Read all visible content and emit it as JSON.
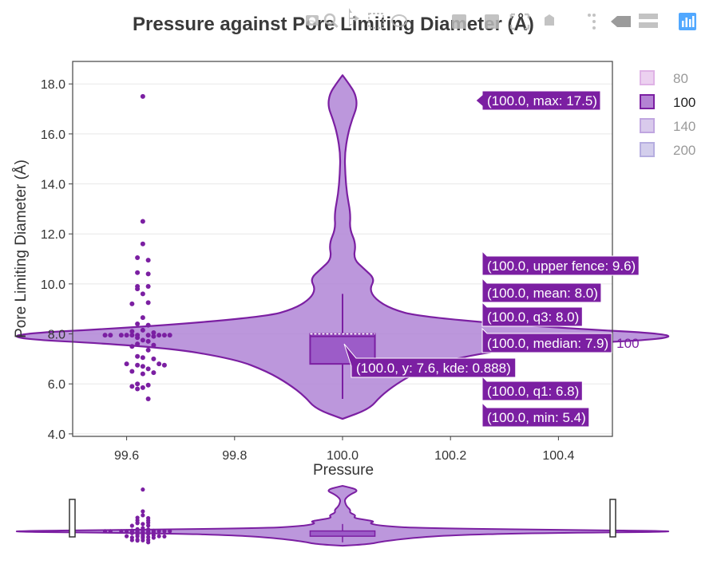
{
  "chart_data": {
    "type": "violin",
    "title": "Pressure against Pore Limiting Diameter (Å)",
    "xlabel": "Pressure",
    "ylabel": "Pore Limiting Diameter (Å)",
    "xlim": [
      99.5,
      100.5
    ],
    "ylim": [
      3.9,
      18.9
    ],
    "x_ticks": [
      "99.6",
      "99.8",
      "100.0",
      "100.2",
      "100.4"
    ],
    "y_ticks": [
      "4.0",
      "6.0",
      "8.0",
      "10.0",
      "12.0",
      "14.0",
      "16.0",
      "18.0"
    ],
    "grid": true,
    "legend": {
      "placement": "top-right",
      "items": [
        {
          "name": "80",
          "color": "#dfb3e6",
          "active": false
        },
        {
          "name": "100",
          "color": "#9b59c6",
          "active": true
        },
        {
          "name": "140",
          "color": "#c0a6e0",
          "active": false
        },
        {
          "name": "200",
          "color": "#b6aee0",
          "active": false
        }
      ]
    },
    "series": [
      {
        "name": "100",
        "x": 100.0,
        "color": "#7b1fa2",
        "fill": "#b085d6",
        "box": {
          "min": 5.4,
          "q1": 6.8,
          "median": 7.9,
          "mean": 8.0,
          "q3": 8.0,
          "upper_fence": 9.6,
          "max": 17.5
        },
        "violin_profile": [
          [
            4.6,
            0.0
          ],
          [
            5.0,
            0.05
          ],
          [
            5.5,
            0.07
          ],
          [
            6.0,
            0.1
          ],
          [
            6.5,
            0.14
          ],
          [
            7.0,
            0.2
          ],
          [
            7.5,
            0.34
          ],
          [
            7.9,
            0.69
          ],
          [
            8.3,
            0.35
          ],
          [
            8.7,
            0.14
          ],
          [
            9.0,
            0.09
          ],
          [
            9.4,
            0.06
          ],
          [
            9.8,
            0.05
          ],
          [
            10.2,
            0.06
          ],
          [
            10.6,
            0.04
          ],
          [
            11.0,
            0.02
          ],
          [
            11.6,
            0.025
          ],
          [
            12.2,
            0.013
          ],
          [
            12.8,
            0.015
          ],
          [
            13.6,
            0.008
          ],
          [
            14.4,
            0.005
          ],
          [
            15.2,
            0.004
          ],
          [
            16.0,
            0.01
          ],
          [
            16.6,
            0.018
          ],
          [
            17.1,
            0.027
          ],
          [
            17.6,
            0.024
          ],
          [
            18.0,
            0.012
          ],
          [
            18.35,
            0.0
          ]
        ],
        "points_x_offset": -0.37,
        "points": [
          [
            99.63,
            17.5
          ],
          [
            99.63,
            12.5
          ],
          [
            99.63,
            11.6
          ],
          [
            99.62,
            11.05
          ],
          [
            99.64,
            10.95
          ],
          [
            99.62,
            10.45
          ],
          [
            99.64,
            10.4
          ],
          [
            99.62,
            9.9
          ],
          [
            99.64,
            9.9
          ],
          [
            99.62,
            9.8
          ],
          [
            99.63,
            9.6
          ],
          [
            99.64,
            9.25
          ],
          [
            99.61,
            9.2
          ],
          [
            99.63,
            8.65
          ],
          [
            99.62,
            8.4
          ],
          [
            99.64,
            8.35
          ],
          [
            99.63,
            8.15
          ],
          [
            99.61,
            8.1
          ],
          [
            99.65,
            8.05
          ],
          [
            99.56,
            7.95
          ],
          [
            99.57,
            7.95
          ],
          [
            99.59,
            7.95
          ],
          [
            99.6,
            7.95
          ],
          [
            99.61,
            7.95
          ],
          [
            99.62,
            7.95
          ],
          [
            99.64,
            7.95
          ],
          [
            99.66,
            7.95
          ],
          [
            99.67,
            7.95
          ],
          [
            99.68,
            7.95
          ],
          [
            99.65,
            7.9
          ],
          [
            99.62,
            7.85
          ],
          [
            99.63,
            7.75
          ],
          [
            99.64,
            7.7
          ],
          [
            99.62,
            7.6
          ],
          [
            99.65,
            7.55
          ],
          [
            99.61,
            7.5
          ],
          [
            99.64,
            7.35
          ],
          [
            99.62,
            7.1
          ],
          [
            99.63,
            7.05
          ],
          [
            99.65,
            7.0
          ],
          [
            99.6,
            6.8
          ],
          [
            99.62,
            6.75
          ],
          [
            99.66,
            6.8
          ],
          [
            99.67,
            6.75
          ],
          [
            99.63,
            6.7
          ],
          [
            99.64,
            6.6
          ],
          [
            99.61,
            6.5
          ],
          [
            99.65,
            6.45
          ],
          [
            99.63,
            6.4
          ],
          [
            99.62,
            6.0
          ],
          [
            99.64,
            5.95
          ],
          [
            99.61,
            5.9
          ],
          [
            99.63,
            5.85
          ],
          [
            99.62,
            5.8
          ],
          [
            99.64,
            5.4
          ]
        ]
      }
    ],
    "hover": {
      "trace_label": "100",
      "kde_label": "(100.0, y: 7.6, kde: 0.888)",
      "kde_point_y": 7.6,
      "box_labels": [
        {
          "text": "(100.0, max: 17.5)",
          "y": 17.5
        },
        {
          "text": "(100.0, upper fence: 9.6)",
          "y": 9.6
        },
        {
          "text": "(100.0, mean: 8.0)",
          "y": 8.0
        },
        {
          "text": "(100.0, q3: 8.0)",
          "y": 8.0
        },
        {
          "text": "(100.0, median: 7.9)",
          "y": 7.9
        },
        {
          "text": "(100.0, q1: 6.8)",
          "y": 6.8
        },
        {
          "text": "(100.0, min: 5.4)",
          "y": 5.4
        }
      ]
    }
  },
  "modebar": {
    "icons": [
      "camera-icon",
      "zoom-icon",
      "pan-icon",
      "box-select-icon",
      "lasso-icon",
      "zoom-in-icon",
      "zoom-out-icon",
      "autoscale-icon",
      "reset-axes-icon",
      "spike-lines-icon",
      "hover-closest-icon",
      "hover-compare-icon",
      "plotly-logo-icon"
    ],
    "logo_color": "#3399ff"
  }
}
